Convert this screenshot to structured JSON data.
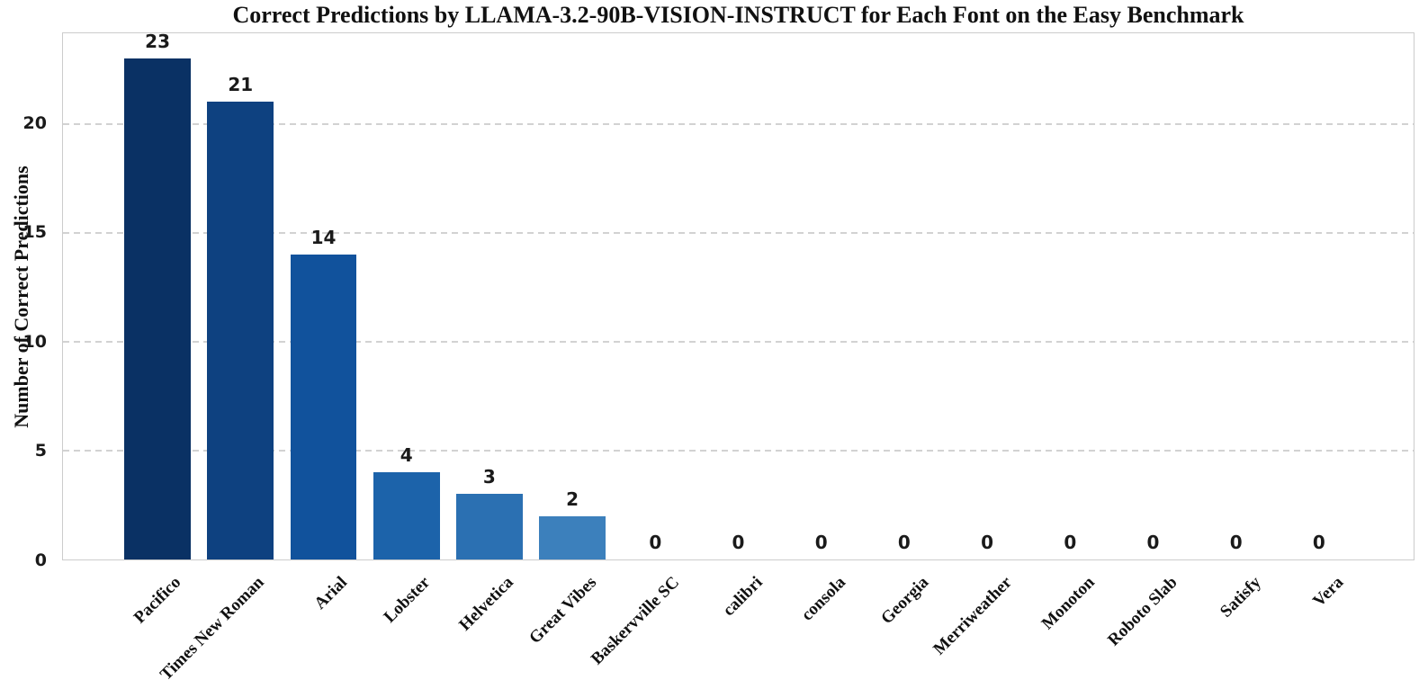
{
  "chart_data": {
    "type": "bar",
    "title": "Correct Predictions by LLAMA-3.2-90B-VISION-INSTRUCT for Each Font on the Easy Benchmark",
    "xlabel": "",
    "ylabel": "Number of Correct Predictions",
    "categories": [
      "Pacifico",
      "Times New Roman",
      "Arial",
      "Lobster",
      "Helvetica",
      "Great Vibes",
      "Baskervville SC",
      "calibri",
      "consola",
      "Georgia",
      "Merriweather",
      "Monoton",
      "Roboto Slab",
      "Satisfy",
      "Vera"
    ],
    "values": [
      23,
      21,
      14,
      4,
      3,
      2,
      0,
      0,
      0,
      0,
      0,
      0,
      0,
      0,
      0
    ],
    "bar_colors": [
      "#0a3164",
      "#0e4180",
      "#11529c",
      "#1c63aa",
      "#2b70b2",
      "#3c80bc",
      "#4a8cc4",
      "#5a98cb",
      "#6aa3d1",
      "#7aaed6",
      "#8ab8db",
      "#9ac2e0",
      "#aacce5",
      "#bad6ea",
      "#cae0ef"
    ],
    "yticks": [
      0,
      5,
      10,
      15,
      20
    ],
    "ylim": [
      0,
      24.15
    ],
    "xlim": [
      -1.14,
      15.14
    ],
    "bar_width_units": 0.8,
    "grid": "horizontal dashed at yticks, drawn behind bars",
    "legend": "none",
    "colors": {
      "grid": "#d2d2d2",
      "spine": "#cccccc",
      "text": "#111111",
      "background": "#ffffff"
    }
  }
}
